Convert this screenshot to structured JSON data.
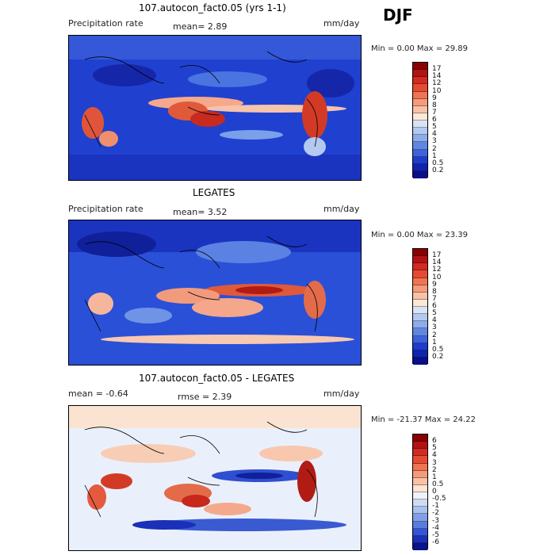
{
  "season": "DJF",
  "panels": [
    {
      "title": "107.autocon_fact0.05 (yrs 1-1)",
      "left_label": "Precipitation rate",
      "stat": "mean=   2.89",
      "units": "mm/day",
      "minmax": "Min =    0.00 Max =  29.89",
      "colorbar": {
        "labels": [
          "17",
          "14",
          "12",
          "10",
          "9",
          "8",
          "7",
          "6",
          "5",
          "4",
          "3",
          "2",
          "1",
          "0.5",
          "0.2"
        ],
        "colors": [
          "#8b0000",
          "#b11313",
          "#d22a20",
          "#e54b32",
          "#f07452",
          "#f59b7c",
          "#f9c2a6",
          "#fbe8d8",
          "#d8e4f6",
          "#b3c9f0",
          "#8caceb",
          "#5f86e3",
          "#3d63dc",
          "#1f3ccc",
          "#1024ad",
          "#0a0f86"
        ]
      }
    },
    {
      "title": "LEGATES",
      "left_label": "Precipitation rate",
      "stat": "mean=   3.52",
      "units": "mm/day",
      "minmax": "Min =    0.00 Max =  23.39",
      "colorbar": {
        "labels": [
          "17",
          "14",
          "12",
          "10",
          "9",
          "8",
          "7",
          "6",
          "5",
          "4",
          "3",
          "2",
          "1",
          "0.5",
          "0.2"
        ],
        "colors": [
          "#8b0000",
          "#b11313",
          "#d22a20",
          "#e54b32",
          "#f07452",
          "#f59b7c",
          "#f9c2a6",
          "#fbe8d8",
          "#d8e4f6",
          "#b3c9f0",
          "#8caceb",
          "#5f86e3",
          "#3d63dc",
          "#1f3ccc",
          "#1024ad",
          "#0a0f86"
        ]
      }
    },
    {
      "title": "107.autocon_fact0.05 - LEGATES",
      "left_label": "mean =  -0.64",
      "stat": "rmse =   2.39",
      "units": "mm/day",
      "minmax": "Min = -21.37 Max =  24.22",
      "colorbar": {
        "labels": [
          "6",
          "5",
          "4",
          "3",
          "2",
          "1",
          "0.5",
          "0",
          "-0.5",
          "-1",
          "-2",
          "-3",
          "-4",
          "-5",
          "-6"
        ],
        "colors": [
          "#8b0000",
          "#b11313",
          "#d22a20",
          "#e54b32",
          "#f07452",
          "#f59b7c",
          "#f9c2a6",
          "#fde4d3",
          "#eef2fb",
          "#cddcf4",
          "#a9c1ee",
          "#819fe8",
          "#5a7ce0",
          "#3355d6",
          "#1a30b8",
          "#0a1389"
        ]
      }
    }
  ]
}
